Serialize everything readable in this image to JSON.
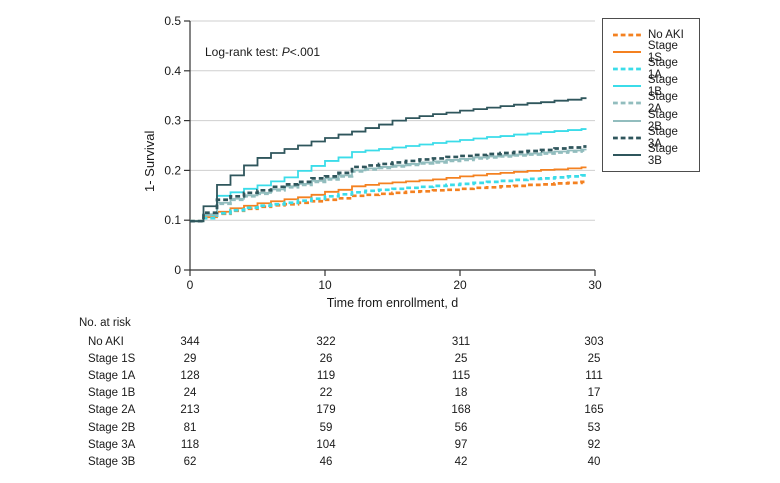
{
  "colors": {
    "orange": "#F48120",
    "cyan": "#3BDCE9",
    "teal_light": "#92BDBE",
    "teal_dark": "#2F565C",
    "grid": "#CFCFCF",
    "axis": "#333333",
    "text": "#1A1A1A"
  },
  "chart_data": {
    "type": "line",
    "variant": "kaplan-meier-step",
    "title": "",
    "xlabel": "Time from enrollment, d",
    "ylabel": "1- Survival",
    "xlim": [
      0,
      30
    ],
    "ylim": [
      0,
      0.5
    ],
    "xticks": [
      0,
      10,
      20,
      30
    ],
    "yticks": [
      0,
      0.1,
      0.2,
      0.3,
      0.4,
      0.5
    ],
    "grid": "horizontal",
    "legend_position": "outside-right",
    "annotation": {
      "prefix": "Log-rank test: ",
      "italic": "P",
      "suffix": "<.001"
    },
    "x_days": [
      0,
      1,
      2,
      3,
      4,
      5,
      6,
      7,
      8,
      9,
      10,
      11,
      12,
      13,
      14,
      15,
      16,
      17,
      18,
      19,
      20,
      21,
      22,
      23,
      24,
      25,
      26,
      27,
      28,
      29
    ],
    "series": [
      {
        "name": "No AKI",
        "color": "#F48120",
        "dash": true,
        "values": [
          0.098,
          0.104,
          0.113,
          0.119,
          0.123,
          0.127,
          0.13,
          0.132,
          0.135,
          0.138,
          0.141,
          0.144,
          0.149,
          0.151,
          0.153,
          0.155,
          0.157,
          0.158,
          0.16,
          0.161,
          0.163,
          0.165,
          0.166,
          0.168,
          0.169,
          0.171,
          0.172,
          0.174,
          0.175,
          0.177
        ]
      },
      {
        "name": "Stage 1S",
        "color": "#F48120",
        "dash": false,
        "values": [
          0.098,
          0.106,
          0.117,
          0.124,
          0.129,
          0.134,
          0.138,
          0.142,
          0.146,
          0.151,
          0.157,
          0.161,
          0.168,
          0.171,
          0.174,
          0.176,
          0.178,
          0.18,
          0.182,
          0.185,
          0.188,
          0.19,
          0.193,
          0.195,
          0.197,
          0.199,
          0.201,
          0.202,
          0.204,
          0.206
        ]
      },
      {
        "name": "Stage 1A",
        "color": "#3BDCE9",
        "dash": true,
        "values": [
          0.098,
          0.104,
          0.114,
          0.12,
          0.125,
          0.129,
          0.132,
          0.135,
          0.139,
          0.143,
          0.148,
          0.152,
          0.156,
          0.159,
          0.161,
          0.163,
          0.165,
          0.167,
          0.169,
          0.171,
          0.173,
          0.175,
          0.177,
          0.179,
          0.181,
          0.183,
          0.184,
          0.186,
          0.188,
          0.19
        ]
      },
      {
        "name": "Stage 1B",
        "color": "#3BDCE9",
        "dash": false,
        "values": [
          0.098,
          0.11,
          0.149,
          0.156,
          0.163,
          0.17,
          0.178,
          0.186,
          0.199,
          0.209,
          0.219,
          0.226,
          0.237,
          0.24,
          0.243,
          0.246,
          0.249,
          0.252,
          0.255,
          0.258,
          0.261,
          0.264,
          0.267,
          0.269,
          0.272,
          0.274,
          0.277,
          0.279,
          0.281,
          0.283
        ]
      },
      {
        "name": "Stage 2A",
        "color": "#92BDBE",
        "dash": true,
        "values": [
          0.098,
          0.111,
          0.133,
          0.141,
          0.148,
          0.153,
          0.16,
          0.166,
          0.171,
          0.177,
          0.182,
          0.188,
          0.198,
          0.202,
          0.205,
          0.208,
          0.211,
          0.214,
          0.216,
          0.219,
          0.221,
          0.224,
          0.226,
          0.228,
          0.23,
          0.232,
          0.234,
          0.236,
          0.238,
          0.24
        ]
      },
      {
        "name": "Stage 2B",
        "color": "#92BDBE",
        "dash": false,
        "values": [
          0.098,
          0.112,
          0.135,
          0.143,
          0.15,
          0.155,
          0.162,
          0.168,
          0.173,
          0.179,
          0.184,
          0.19,
          0.2,
          0.204,
          0.207,
          0.21,
          0.213,
          0.216,
          0.218,
          0.221,
          0.223,
          0.226,
          0.228,
          0.23,
          0.232,
          0.234,
          0.236,
          0.238,
          0.24,
          0.242
        ]
      },
      {
        "name": "Stage 3A",
        "color": "#2F565C",
        "dash": true,
        "values": [
          0.098,
          0.115,
          0.141,
          0.148,
          0.155,
          0.16,
          0.167,
          0.172,
          0.177,
          0.184,
          0.188,
          0.195,
          0.207,
          0.21,
          0.213,
          0.216,
          0.219,
          0.222,
          0.224,
          0.227,
          0.229,
          0.231,
          0.233,
          0.235,
          0.237,
          0.239,
          0.241,
          0.244,
          0.246,
          0.248
        ]
      },
      {
        "name": "Stage 3B",
        "color": "#2F565C",
        "dash": false,
        "values": [
          0.098,
          0.128,
          0.171,
          0.19,
          0.21,
          0.225,
          0.235,
          0.243,
          0.25,
          0.258,
          0.265,
          0.272,
          0.278,
          0.285,
          0.292,
          0.3,
          0.305,
          0.309,
          0.313,
          0.316,
          0.32,
          0.323,
          0.326,
          0.329,
          0.332,
          0.335,
          0.337,
          0.34,
          0.342,
          0.345
        ]
      }
    ]
  },
  "risk_table": {
    "title": "No. at risk",
    "timepoints": [
      0,
      10,
      20,
      30
    ],
    "rows": [
      {
        "label": "No AKI",
        "values": [
          "344",
          "322",
          "311",
          "303"
        ]
      },
      {
        "label": "Stage 1S",
        "values": [
          "29",
          "26",
          "25",
          "25"
        ]
      },
      {
        "label": "Stage 1A",
        "values": [
          "128",
          "119",
          "115",
          "111"
        ]
      },
      {
        "label": "Stage 1B",
        "values": [
          "24",
          "22",
          "18",
          "17"
        ]
      },
      {
        "label": "Stage 2A",
        "values": [
          "213",
          "179",
          "168",
          "165"
        ]
      },
      {
        "label": "Stage 2B",
        "values": [
          "81",
          "59",
          "56",
          "53"
        ]
      },
      {
        "label": "Stage 3A",
        "values": [
          "118",
          "104",
          "97",
          "92"
        ]
      },
      {
        "label": "Stage 3B",
        "values": [
          "62",
          "46",
          "42",
          "40"
        ]
      }
    ]
  }
}
